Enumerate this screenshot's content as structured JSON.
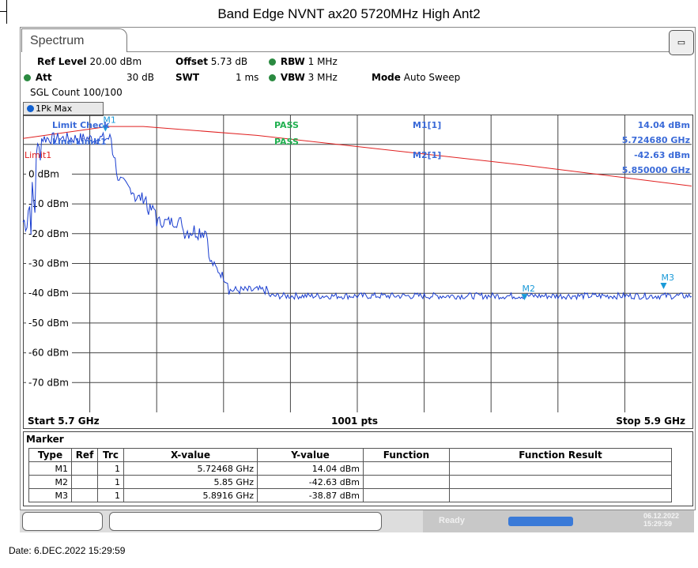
{
  "title": "Band Edge NVNT ax20 5720MHz High Ant2",
  "tab": {
    "label": "Spectrum"
  },
  "header": {
    "ref_level_label": "Ref Level",
    "ref_level_value": "20.00 dBm",
    "offset_label": "Offset",
    "offset_value": "5.73 dB",
    "rbw_label": "RBW",
    "rbw_value": "1 MHz",
    "att_label": "Att",
    "att_value": "30 dB",
    "swt_label": "SWT",
    "swt_value": "1 ms",
    "vbw_label": "VBW",
    "vbw_value": "3 MHz",
    "mode_label": "Mode",
    "mode_value": "Auto Sweep",
    "sgl_count": "SGL Count 100/100"
  },
  "trace_label": "1Pk Max",
  "plot": {
    "limit_check": "Limit Check",
    "line_limit": "Line Limit1",
    "pass1": "PASS",
    "pass2": "PASS",
    "limit1_label": "Limit1",
    "m1_readout_label": "M1[1]",
    "m1_readout_value": "14.04 dBm",
    "m1_readout_freq": "5.724680 GHz",
    "m2_readout_label": "M2[1]",
    "m2_readout_value": "-42.63 dBm",
    "m2_readout_freq": "5.850000 GHz",
    "y_ticks": [
      "0 dBm",
      "-10 dBm",
      "-20 dBm",
      "-30 dBm",
      "-40 dBm",
      "-50 dBm",
      "-60 dBm",
      "-70 dBm"
    ],
    "start": "Start 5.7 GHz",
    "points": "1001 pts",
    "stop": "Stop 5.9 GHz",
    "markers": [
      {
        "name": "M1",
        "freq_ghz": 5.72468,
        "level_dbm": 14.04
      },
      {
        "name": "M2",
        "freq_ghz": 5.85,
        "level_dbm": -42.63
      },
      {
        "name": "M3",
        "freq_ghz": 5.8916,
        "level_dbm": -38.87
      }
    ],
    "colors": {
      "trace": "#1a3ed0",
      "limit": "#e02020",
      "marker": "#1a9ad8",
      "pass": "#20b050",
      "label": "#3a6ad8"
    }
  },
  "marker_table": {
    "title": "Marker",
    "headers": [
      "Type",
      "Ref",
      "Trc",
      "X-value",
      "Y-value",
      "Function",
      "Function Result"
    ],
    "rows": [
      [
        "M1",
        "",
        "1",
        "5.72468 GHz",
        "14.04 dBm",
        "",
        ""
      ],
      [
        "M2",
        "",
        "1",
        "5.85 GHz",
        "-42.63 dBm",
        "",
        ""
      ],
      [
        "M3",
        "",
        "1",
        "5.8916 GHz",
        "-38.87 dBm",
        "",
        ""
      ]
    ]
  },
  "status": {
    "ready": "Ready",
    "date_short": "06.12.2022",
    "time_short": "15:29:59"
  },
  "footer": {
    "date": "Date: 6.DEC.2022  15:29:59"
  }
}
